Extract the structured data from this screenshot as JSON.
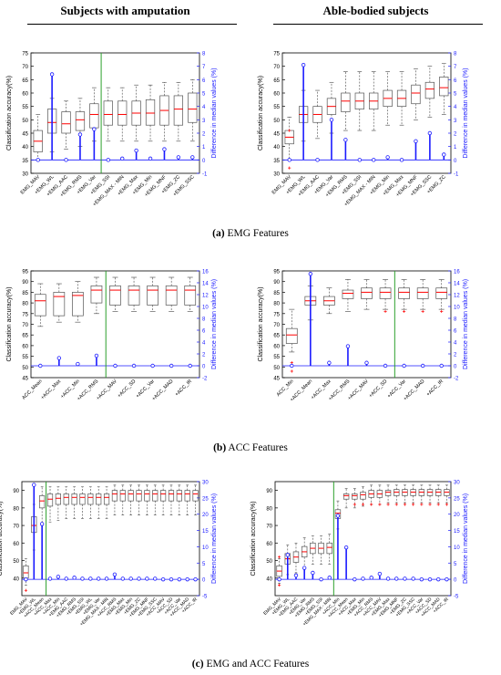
{
  "headers": {
    "left": "Subjects with amputation",
    "right": "Able-bodied subjects"
  },
  "captions": {
    "a": {
      "letter": "(a)",
      "text": " EMG Features"
    },
    "b": {
      "letter": "(b)",
      "text": " ACC Features"
    },
    "c": {
      "letter": "(c)",
      "text": " EMG and ACC Features"
    }
  },
  "colors": {
    "median": "#ff0000",
    "diff": "#1a1aff",
    "divider": "#2ca02c",
    "box": "#555555",
    "outlier": "#ff0000"
  },
  "chart_data": [
    {
      "id": "a-left",
      "type": "box",
      "ylabel": "Classification accuracy(%)",
      "y2label": "Difference in median values (%)",
      "ylim": [
        30,
        75
      ],
      "yticks": [
        30,
        35,
        40,
        45,
        50,
        55,
        60,
        65,
        70,
        75
      ],
      "y2lim": [
        -1,
        8
      ],
      "y2ticks": [
        -1,
        0,
        1,
        2,
        3,
        4,
        5,
        6,
        7,
        8
      ],
      "divider_after": 4,
      "categories": [
        "EMG_MAV",
        "+EMG_WL",
        "+EMG_AAC",
        "+EMG_RMS",
        "+EMG_Var",
        "+EMG_SSI",
        "+EMG_MAX - MIN",
        "+EMG_Max",
        "+EMG_Min",
        "+EMG_MNF",
        "+EMG_ZC",
        "+EMG_SSC"
      ],
      "boxes": [
        {
          "wl": 35,
          "q1": 38,
          "med": 42,
          "q3": 46,
          "wh": 52
        },
        {
          "wl": 38,
          "q1": 45,
          "med": 49,
          "q3": 54,
          "wh": 58
        },
        {
          "wl": 39,
          "q1": 45,
          "med": 48.5,
          "q3": 53,
          "wh": 57
        },
        {
          "wl": 40,
          "q1": 46,
          "med": 50,
          "q3": 53,
          "wh": 58
        },
        {
          "wl": 42,
          "q1": 47,
          "med": 52,
          "q3": 56,
          "wh": 62
        },
        {
          "wl": 42,
          "q1": 48,
          "med": 52,
          "q3": 57,
          "wh": 62
        },
        {
          "wl": 42,
          "q1": 48,
          "med": 52,
          "q3": 57,
          "wh": 62
        },
        {
          "wl": 42,
          "q1": 48,
          "med": 52.5,
          "q3": 57,
          "wh": 63
        },
        {
          "wl": 42,
          "q1": 48,
          "med": 52.5,
          "q3": 57.5,
          "wh": 63
        },
        {
          "wl": 42,
          "q1": 48,
          "med": 53.5,
          "q3": 59,
          "wh": 64
        },
        {
          "wl": 42,
          "q1": 48,
          "med": 54,
          "q3": 59,
          "wh": 64
        },
        {
          "wl": 42,
          "q1": 49,
          "med": 54,
          "q3": 60,
          "wh": 65
        }
      ],
      "outliers": [],
      "diff": [
        0,
        6.4,
        0,
        1.9,
        2.3,
        0,
        0.1,
        0.7,
        0.1,
        0.8,
        0.2,
        0.2
      ]
    },
    {
      "id": "a-right",
      "type": "box",
      "ylabel": "Classification accuracy(%)",
      "y2label": "Difference in median values (%)",
      "ylim": [
        30,
        75
      ],
      "yticks": [
        30,
        35,
        40,
        45,
        50,
        55,
        60,
        65,
        70,
        75
      ],
      "y2lim": [
        -1,
        8
      ],
      "y2ticks": [
        -1,
        0,
        1,
        2,
        3,
        4,
        5,
        6,
        7,
        8
      ],
      "divider_after": -1,
      "categories": [
        "EMG_MAV",
        "+EMG_WL",
        "+EMG_AAC",
        "+EMG_Var",
        "+EMG_RMS",
        "+EMG_SSI",
        "+EMG_MAX - MIN",
        "+EMG_Min",
        "+EMG_Max",
        "+EMG_MNF",
        "+EMG_SSC",
        "+EMG_ZC"
      ],
      "boxes": [
        {
          "wl": 35,
          "q1": 41,
          "med": 43.5,
          "q3": 46,
          "wh": 51
        },
        {
          "wl": 42,
          "q1": 49,
          "med": 52,
          "q3": 55,
          "wh": 61
        },
        {
          "wl": 43,
          "q1": 49,
          "med": 52,
          "q3": 55,
          "wh": 61
        },
        {
          "wl": 45,
          "q1": 52,
          "med": 55,
          "q3": 58,
          "wh": 64
        },
        {
          "wl": 46,
          "q1": 53,
          "med": 57,
          "q3": 60,
          "wh": 68
        },
        {
          "wl": 46,
          "q1": 54,
          "med": 57,
          "q3": 60,
          "wh": 68
        },
        {
          "wl": 46,
          "q1": 54,
          "med": 57,
          "q3": 60,
          "wh": 68
        },
        {
          "wl": 48,
          "q1": 55,
          "med": 58,
          "q3": 61,
          "wh": 68
        },
        {
          "wl": 48,
          "q1": 55,
          "med": 58,
          "q3": 61,
          "wh": 68
        },
        {
          "wl": 50,
          "q1": 56,
          "med": 60,
          "q3": 63,
          "wh": 69
        },
        {
          "wl": 51,
          "q1": 58,
          "med": 61.5,
          "q3": 64,
          "wh": 70
        },
        {
          "wl": 52,
          "q1": 59,
          "med": 62,
          "q3": 66,
          "wh": 71
        }
      ],
      "outliers": [
        {
          "i": 0,
          "y": 46
        },
        {
          "i": 0,
          "y": 32
        }
      ],
      "diff": [
        0,
        7.1,
        0,
        3.0,
        1.5,
        0,
        0,
        0.2,
        0,
        1.4,
        2.0,
        0.4
      ]
    },
    {
      "id": "b-left",
      "type": "box",
      "ylabel": "Classification accuracy(%)",
      "y2label": "Difference in median values (%)",
      "ylim": [
        45,
        95
      ],
      "yticks": [
        45,
        50,
        55,
        60,
        65,
        70,
        75,
        80,
        85,
        90,
        95
      ],
      "y2lim": [
        -2,
        16
      ],
      "y2ticks": [
        -2,
        0,
        2,
        4,
        6,
        8,
        10,
        12,
        14,
        16
      ],
      "divider_after": 3,
      "categories": [
        "ACC_Mean",
        "+ACC_Max",
        "+ACC_Min",
        "+ACC_RMS",
        "+ACC_MAV",
        "+ACC_SD",
        "+ACC_Var",
        "+ACC_MAD",
        "+ACC_IR"
      ],
      "boxes": [
        {
          "wl": 69,
          "q1": 74,
          "med": 81,
          "q3": 84,
          "wh": 89
        },
        {
          "wl": 71,
          "q1": 74,
          "med": 83,
          "q3": 85,
          "wh": 89
        },
        {
          "wl": 71,
          "q1": 74,
          "med": 83.5,
          "q3": 85,
          "wh": 90
        },
        {
          "wl": 75,
          "q1": 80,
          "med": 86,
          "q3": 88,
          "wh": 92
        },
        {
          "wl": 76,
          "q1": 79,
          "med": 86,
          "q3": 88,
          "wh": 92
        },
        {
          "wl": 76,
          "q1": 79,
          "med": 86,
          "q3": 88,
          "wh": 92
        },
        {
          "wl": 76,
          "q1": 79,
          "med": 86,
          "q3": 88,
          "wh": 92
        },
        {
          "wl": 76,
          "q1": 79,
          "med": 86,
          "q3": 88,
          "wh": 92
        },
        {
          "wl": 76,
          "q1": 79,
          "med": 86,
          "q3": 88,
          "wh": 92
        }
      ],
      "outliers": [],
      "diff": [
        0,
        1.3,
        0.3,
        1.7,
        0,
        0,
        0,
        0,
        0
      ]
    },
    {
      "id": "b-right",
      "type": "box",
      "ylabel": "Classification accuracy(%)",
      "y2label": "Difference in median values (%)",
      "ylim": [
        45,
        95
      ],
      "yticks": [
        45,
        50,
        55,
        60,
        65,
        70,
        75,
        80,
        85,
        90,
        95
      ],
      "y2lim": [
        -2,
        16
      ],
      "y2ticks": [
        -2,
        0,
        2,
        4,
        6,
        8,
        10,
        12,
        14,
        16
      ],
      "divider_after": 5,
      "categories": [
        "ACC_Min",
        "+ACC_Mean",
        "+ACC_Max",
        "+ACC_RMS",
        "+ACC_MAV",
        "+ACC_SD",
        "+ACC_Var",
        "+ACC_MAD",
        "+ACC_IR"
      ],
      "boxes": [
        {
          "wl": 57,
          "q1": 61,
          "med": 65,
          "q3": 68,
          "wh": 77
        },
        {
          "wl": 72,
          "q1": 79,
          "med": 81,
          "q3": 83,
          "wh": 88
        },
        {
          "wl": 75,
          "q1": 79,
          "med": 81,
          "q3": 83,
          "wh": 87
        },
        {
          "wl": 76,
          "q1": 82,
          "med": 84.5,
          "q3": 86,
          "wh": 91
        },
        {
          "wl": 77,
          "q1": 82,
          "med": 85,
          "q3": 87,
          "wh": 91
        },
        {
          "wl": 77,
          "q1": 82,
          "med": 85,
          "q3": 87,
          "wh": 91
        },
        {
          "wl": 77,
          "q1": 82,
          "med": 85,
          "q3": 87,
          "wh": 91
        },
        {
          "wl": 77,
          "q1": 82,
          "med": 85,
          "q3": 87,
          "wh": 91
        },
        {
          "wl": 77,
          "q1": 82,
          "med": 85,
          "q3": 87,
          "wh": 91
        }
      ],
      "outliers": [
        {
          "i": 0,
          "y": 52
        },
        {
          "i": 0,
          "y": 48
        },
        {
          "i": 5,
          "y": 76
        },
        {
          "i": 6,
          "y": 76
        },
        {
          "i": 7,
          "y": 76
        },
        {
          "i": 8,
          "y": 76
        }
      ],
      "diff": [
        0,
        15.5,
        0.5,
        3.3,
        0.5,
        0,
        0,
        0,
        0
      ]
    },
    {
      "id": "c-left",
      "type": "box",
      "ylabel": "Classification accuracy(%)",
      "y2label": "Difference in median values (%)",
      "ylim": [
        30,
        95
      ],
      "yticks": [
        40,
        50,
        60,
        70,
        80,
        90
      ],
      "y2lim": [
        -5,
        30
      ],
      "y2ticks": [
        -5,
        0,
        5,
        10,
        15,
        20,
        25,
        30
      ],
      "divider_after": 2,
      "categories": [
        "EMG_MAV",
        "+EMG_WL",
        "+ACC_Mean",
        "+ACC_Max",
        "+ACC_Min",
        "+EMG_AAC",
        "+EMG_RMS",
        "+EMG_SSI",
        "+EMG_WL",
        "+EMG_Var",
        "+EMG_MAX - MIN",
        "+ACC_RMS",
        "+EMG_Max",
        "+EMG_Min",
        "+EMG_ZC",
        "+EMG_MNF",
        "+EMG_SSC",
        "+ACC_MAV",
        "+ACC_SD",
        "+ACC_Var",
        "+ACC_MAD",
        "+ACC_IR"
      ],
      "boxes": [
        {
          "wl": 36,
          "q1": 40,
          "med": 43,
          "q3": 47,
          "wh": 51
        },
        {
          "wl": 56,
          "q1": 66,
          "med": 70,
          "q3": 75,
          "wh": 82
        },
        {
          "wl": 70,
          "q1": 80,
          "med": 84,
          "q3": 87,
          "wh": 92
        },
        {
          "wl": 72,
          "q1": 81,
          "med": 85,
          "q3": 88,
          "wh": 92
        },
        {
          "wl": 73,
          "q1": 82,
          "med": 85.5,
          "q3": 88,
          "wh": 92
        },
        {
          "wl": 74,
          "q1": 82,
          "med": 86,
          "q3": 88,
          "wh": 92
        },
        {
          "wl": 74,
          "q1": 82,
          "med": 86,
          "q3": 88,
          "wh": 92
        },
        {
          "wl": 74,
          "q1": 82,
          "med": 86,
          "q3": 88,
          "wh": 92
        },
        {
          "wl": 74,
          "q1": 82,
          "med": 86,
          "q3": 88,
          "wh": 92
        },
        {
          "wl": 74,
          "q1": 82,
          "med": 86,
          "q3": 88,
          "wh": 92
        },
        {
          "wl": 74,
          "q1": 82,
          "med": 86,
          "q3": 88,
          "wh": 92
        },
        {
          "wl": 76,
          "q1": 84,
          "med": 88,
          "q3": 90,
          "wh": 93
        },
        {
          "wl": 76,
          "q1": 84,
          "med": 88,
          "q3": 90,
          "wh": 93
        },
        {
          "wl": 76,
          "q1": 84,
          "med": 88,
          "q3": 90,
          "wh": 93
        },
        {
          "wl": 76,
          "q1": 84,
          "med": 88,
          "q3": 90,
          "wh": 93
        },
        {
          "wl": 76,
          "q1": 84,
          "med": 88,
          "q3": 90,
          "wh": 93
        },
        {
          "wl": 76,
          "q1": 84,
          "med": 88,
          "q3": 90,
          "wh": 93
        },
        {
          "wl": 76,
          "q1": 84,
          "med": 88,
          "q3": 90,
          "wh": 93
        },
        {
          "wl": 76,
          "q1": 84,
          "med": 88,
          "q3": 90,
          "wh": 93
        },
        {
          "wl": 76,
          "q1": 84,
          "med": 88,
          "q3": 90,
          "wh": 93
        },
        {
          "wl": 76,
          "q1": 84,
          "med": 88,
          "q3": 90,
          "wh": 93
        },
        {
          "wl": 76,
          "q1": 84,
          "med": 88,
          "q3": 90,
          "wh": 93
        }
      ],
      "outliers": [
        {
          "i": 0,
          "y": 33
        }
      ],
      "diff": [
        0,
        29,
        17,
        0.2,
        0.8,
        0.2,
        0.5,
        0.2,
        0.2,
        0.2,
        0.2,
        1.5,
        0.2,
        0.2,
        0.2,
        0.2,
        0.2,
        0,
        0,
        0,
        0,
        0
      ]
    },
    {
      "id": "c-right",
      "type": "box",
      "ylabel": "Classification accuracy(%)",
      "y2label": "Difference in median values (%)",
      "ylim": [
        30,
        95
      ],
      "yticks": [
        40,
        50,
        60,
        70,
        80,
        90
      ],
      "y2lim": [
        -5,
        30
      ],
      "y2ticks": [
        -5,
        0,
        5,
        10,
        15,
        20,
        25,
        30
      ],
      "divider_after": 6,
      "categories": [
        "EMG_MAV",
        "+EMG_WL",
        "+EMG_AAC",
        "+EMG_Var",
        "+EMG_RMS",
        "+EMG_SSI",
        "+EMG_MAX - MIN",
        "+ACC_Min",
        "+ACC_Mean",
        "+ACC_Max",
        "+EMG_Min",
        "+ACC_RMS",
        "+ACC_MAV",
        "+EMG_Max",
        "+EMG_MNF",
        "+EMG_ZC",
        "+EMG_SSC",
        "+ACC_Var",
        "+ACC_SD",
        "+ACC_MAD",
        "+ACC_IR"
      ],
      "boxes": [
        {
          "wl": 37,
          "q1": 41,
          "med": 44,
          "q3": 47,
          "wh": 51
        },
        {
          "wl": 42,
          "q1": 48,
          "med": 51,
          "q3": 54,
          "wh": 59
        },
        {
          "wl": 43,
          "q1": 49,
          "med": 52,
          "q3": 55,
          "wh": 60
        },
        {
          "wl": 46,
          "q1": 52,
          "med": 55,
          "q3": 58,
          "wh": 63
        },
        {
          "wl": 48,
          "q1": 54,
          "med": 57,
          "q3": 60,
          "wh": 64
        },
        {
          "wl": 48,
          "q1": 54,
          "med": 57,
          "q3": 60,
          "wh": 64
        },
        {
          "wl": 48,
          "q1": 54,
          "med": 57.5,
          "q3": 60,
          "wh": 65
        },
        {
          "wl": 68,
          "q1": 74,
          "med": 77,
          "q3": 79,
          "wh": 84
        },
        {
          "wl": 80,
          "q1": 85,
          "med": 87,
          "q3": 88,
          "wh": 91
        },
        {
          "wl": 80,
          "q1": 85,
          "med": 87,
          "q3": 88,
          "wh": 91
        },
        {
          "wl": 81,
          "q1": 85,
          "med": 87.5,
          "q3": 89,
          "wh": 92
        },
        {
          "wl": 82,
          "q1": 86,
          "med": 88,
          "q3": 90,
          "wh": 93
        },
        {
          "wl": 82,
          "q1": 86,
          "med": 88,
          "q3": 90,
          "wh": 93
        },
        {
          "wl": 83,
          "q1": 87,
          "med": 89,
          "q3": 90,
          "wh": 93
        },
        {
          "wl": 83,
          "q1": 87,
          "med": 89,
          "q3": 90.5,
          "wh": 93
        },
        {
          "wl": 83,
          "q1": 87,
          "med": 89,
          "q3": 90.5,
          "wh": 93
        },
        {
          "wl": 83,
          "q1": 87,
          "med": 89,
          "q3": 90.5,
          "wh": 93
        },
        {
          "wl": 83,
          "q1": 87,
          "med": 89,
          "q3": 90.5,
          "wh": 93
        },
        {
          "wl": 83,
          "q1": 87,
          "med": 89,
          "q3": 90.5,
          "wh": 93
        },
        {
          "wl": 83,
          "q1": 87,
          "med": 89,
          "q3": 90.5,
          "wh": 93
        },
        {
          "wl": 83,
          "q1": 87,
          "med": 89,
          "q3": 90.5,
          "wh": 93
        }
      ],
      "outliers": [
        {
          "i": 0,
          "y": 52
        },
        {
          "i": 0,
          "y": 36
        },
        {
          "i": 9,
          "y": 82
        },
        {
          "i": 10,
          "y": 82
        },
        {
          "i": 11,
          "y": 82
        },
        {
          "i": 12,
          "y": 82
        },
        {
          "i": 13,
          "y": 82
        },
        {
          "i": 14,
          "y": 82
        },
        {
          "i": 15,
          "y": 82
        },
        {
          "i": 16,
          "y": 82
        },
        {
          "i": 17,
          "y": 82
        },
        {
          "i": 18,
          "y": 82
        },
        {
          "i": 19,
          "y": 82
        },
        {
          "i": 20,
          "y": 82
        }
      ],
      "diff": [
        0,
        7.5,
        1.2,
        3.5,
        2.0,
        0,
        0.5,
        19.5,
        9.8,
        0,
        0.2,
        0.5,
        1.7,
        0.2,
        0.2,
        0.2,
        0.2,
        0,
        0,
        0,
        0
      ]
    }
  ]
}
